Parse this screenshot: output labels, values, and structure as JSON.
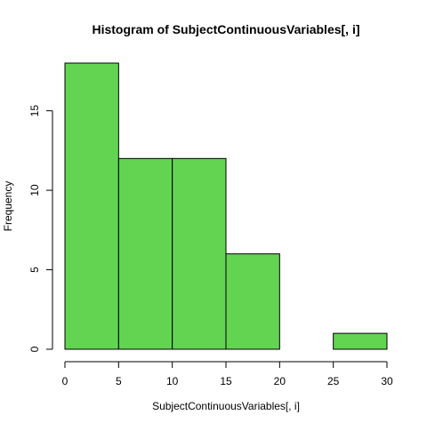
{
  "chart_data": {
    "type": "bar",
    "title": "Histogram of SubjectContinuousVariables[, i]",
    "xlabel": "SubjectContinuousVariables[, i]",
    "ylabel": "Frequency",
    "bins": [
      {
        "start": 0,
        "end": 5,
        "count": 18
      },
      {
        "start": 5,
        "end": 10,
        "count": 12
      },
      {
        "start": 10,
        "end": 15,
        "count": 12
      },
      {
        "start": 15,
        "end": 20,
        "count": 6
      },
      {
        "start": 20,
        "end": 25,
        "count": 0
      },
      {
        "start": 25,
        "end": 30,
        "count": 1
      }
    ],
    "xlim": [
      0,
      30
    ],
    "ylim": [
      0,
      18
    ],
    "x_ticks": [
      "0",
      "5",
      "10",
      "15",
      "20",
      "25",
      "30"
    ],
    "y_ticks": [
      "0",
      "5",
      "10",
      "15"
    ],
    "bar_color": "#62D452",
    "grid": false,
    "legend": "none"
  }
}
